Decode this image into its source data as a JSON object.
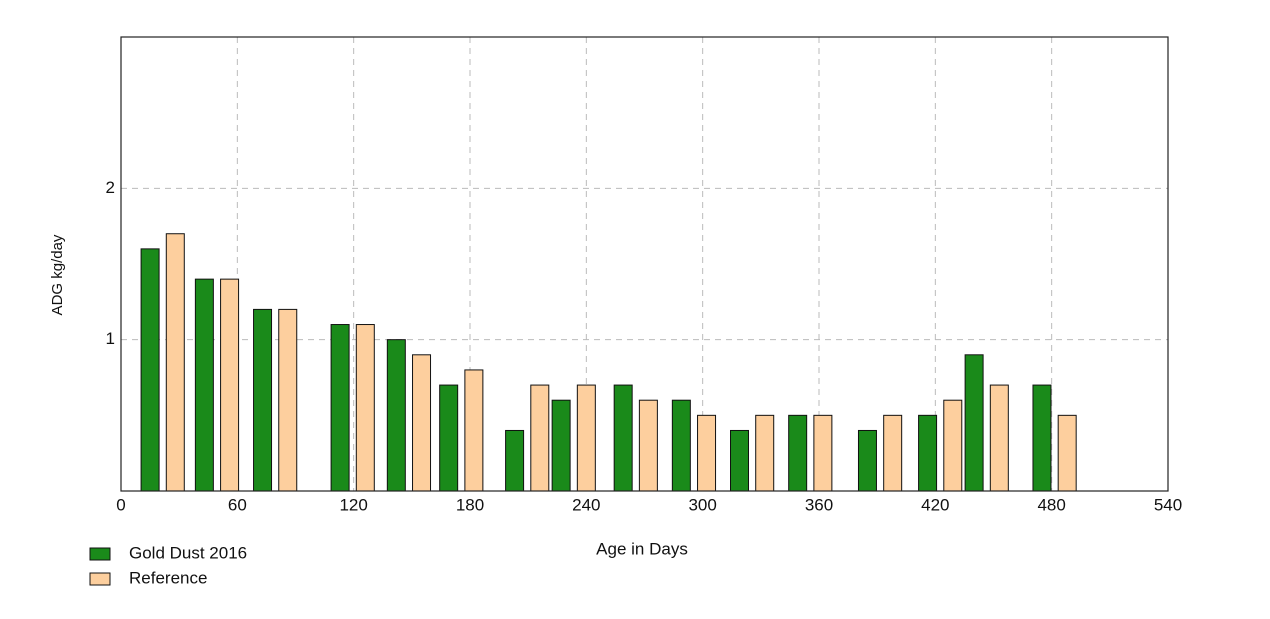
{
  "chart_data": {
    "type": "bar",
    "x_label": "Age in Days",
    "y_label": "ADG kg/day",
    "xlim": [
      0,
      540
    ],
    "xticks": [
      0,
      60,
      120,
      180,
      240,
      300,
      360,
      420,
      480,
      540
    ],
    "ylim": [
      0,
      3
    ],
    "yticks": [
      1,
      2
    ],
    "grid": true,
    "legend": "bottom-left",
    "series": [
      {
        "name": "Gold Dust 2016",
        "color": "#1a8a1a",
        "x": [
          15,
          43,
          73,
          113,
          142,
          169,
          203,
          227,
          259,
          289,
          319,
          349,
          385,
          416,
          440,
          475
        ],
        "values": [
          1.6,
          1.4,
          1.2,
          1.1,
          1.0,
          0.7,
          0.4,
          0.6,
          0.7,
          0.6,
          0.4,
          0.5,
          0.4,
          0.5,
          0.9,
          0.7
        ]
      },
      {
        "name": "Reference",
        "color": "#fdcf9e",
        "x": [
          28,
          56,
          86,
          126,
          155,
          182,
          216,
          240,
          272,
          302,
          332,
          362,
          398,
          429,
          453,
          488
        ],
        "values": [
          1.7,
          1.4,
          1.2,
          1.1,
          0.9,
          0.8,
          0.7,
          0.7,
          0.6,
          0.5,
          0.5,
          0.5,
          0.5,
          0.6,
          0.7,
          0.5
        ]
      }
    ]
  }
}
